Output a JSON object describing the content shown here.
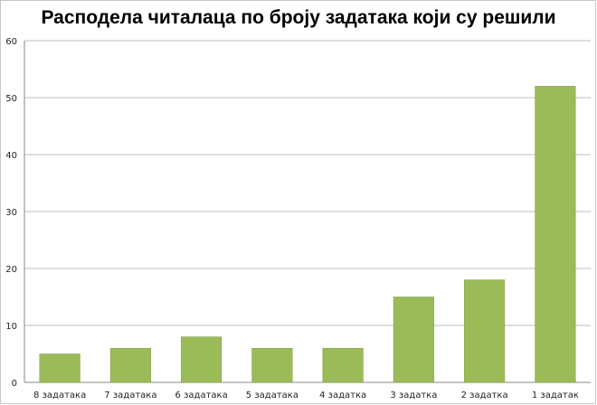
{
  "chart_data": {
    "type": "bar",
    "title": "Расподела читалаца по броју задатака који су решили",
    "categories": [
      "8 задатака",
      "7 задатака",
      "6 задатака",
      "5 задатака",
      "4 задатка",
      "3 задатка",
      "2 задатка",
      "1 задатак"
    ],
    "values": [
      5,
      6,
      8,
      6,
      6,
      15,
      18,
      52
    ],
    "ylim": [
      0,
      60
    ],
    "yticks": [
      0,
      10,
      20,
      30,
      40,
      50,
      60
    ],
    "grid": true,
    "legend": "none",
    "bar_color": "#9bbb59",
    "bar_edge_color": "#7e9a45"
  }
}
